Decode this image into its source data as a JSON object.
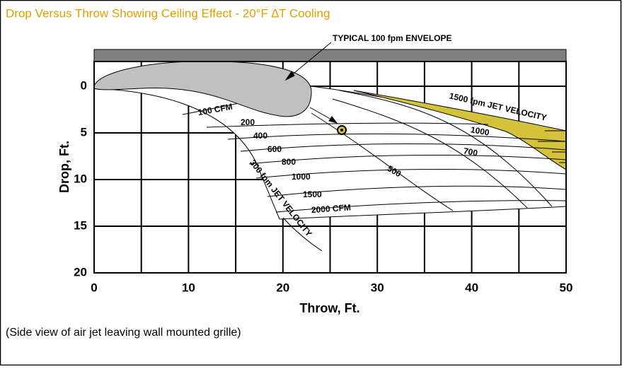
{
  "chart_data": {
    "type": "diagram",
    "title": "Drop Versus Throw Showing Ceiling Effect - 20°F ∆T Cooling",
    "x_label": "Throw, Ft.",
    "y_label": "Drop, Ft.",
    "xlim": [
      0,
      50
    ],
    "xticks": [
      0,
      10,
      20,
      30,
      40,
      50
    ],
    "ylim": [
      0,
      20
    ],
    "yticks": [
      0,
      5,
      10,
      15,
      20
    ],
    "y_inverted": true,
    "grid": true,
    "annotations": [
      "TYPICAL 100 fpm ENVELOPE",
      "100 CFM",
      "200",
      "400",
      "600",
      "800",
      "1000",
      "1500",
      "2000 CFM",
      "300 fpm JET VELOCITY",
      "1500 fpm JET VELOCITY",
      "1000",
      "700",
      "500"
    ],
    "caption": "(Side view of air jet leaving wall mounted grille)"
  }
}
